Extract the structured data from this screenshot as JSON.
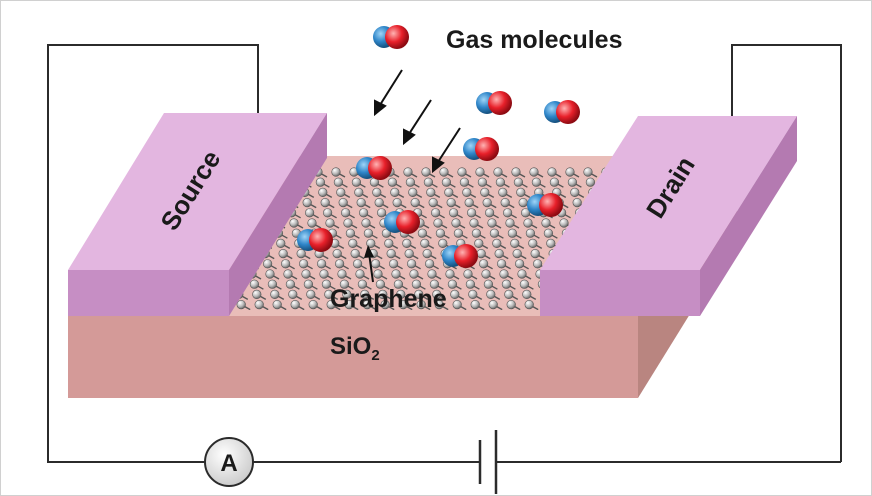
{
  "labels": {
    "gas": "Gas molecules",
    "source": "Source",
    "drain": "Drain",
    "graphene": "Graphene",
    "substrate": "SiO",
    "substrate_sub": "2",
    "ammeter": "A"
  },
  "colors": {
    "substrate_front": "#d49a98",
    "substrate_top": "#e9bdb9",
    "substrate_side": "#b98580",
    "electrode_top": "#e3b6e0",
    "electrode_front": "#c68ec4",
    "electrode_side": "#b47ab1",
    "molecule_blue": "#2f86c9",
    "molecule_red": "#e8202a",
    "wire": "#2b2b2b"
  },
  "icons": {
    "ammeter": "ammeter-icon",
    "battery": "battery-icon",
    "molecule": "gas-molecule-icon",
    "arrow": "arrow-icon"
  }
}
